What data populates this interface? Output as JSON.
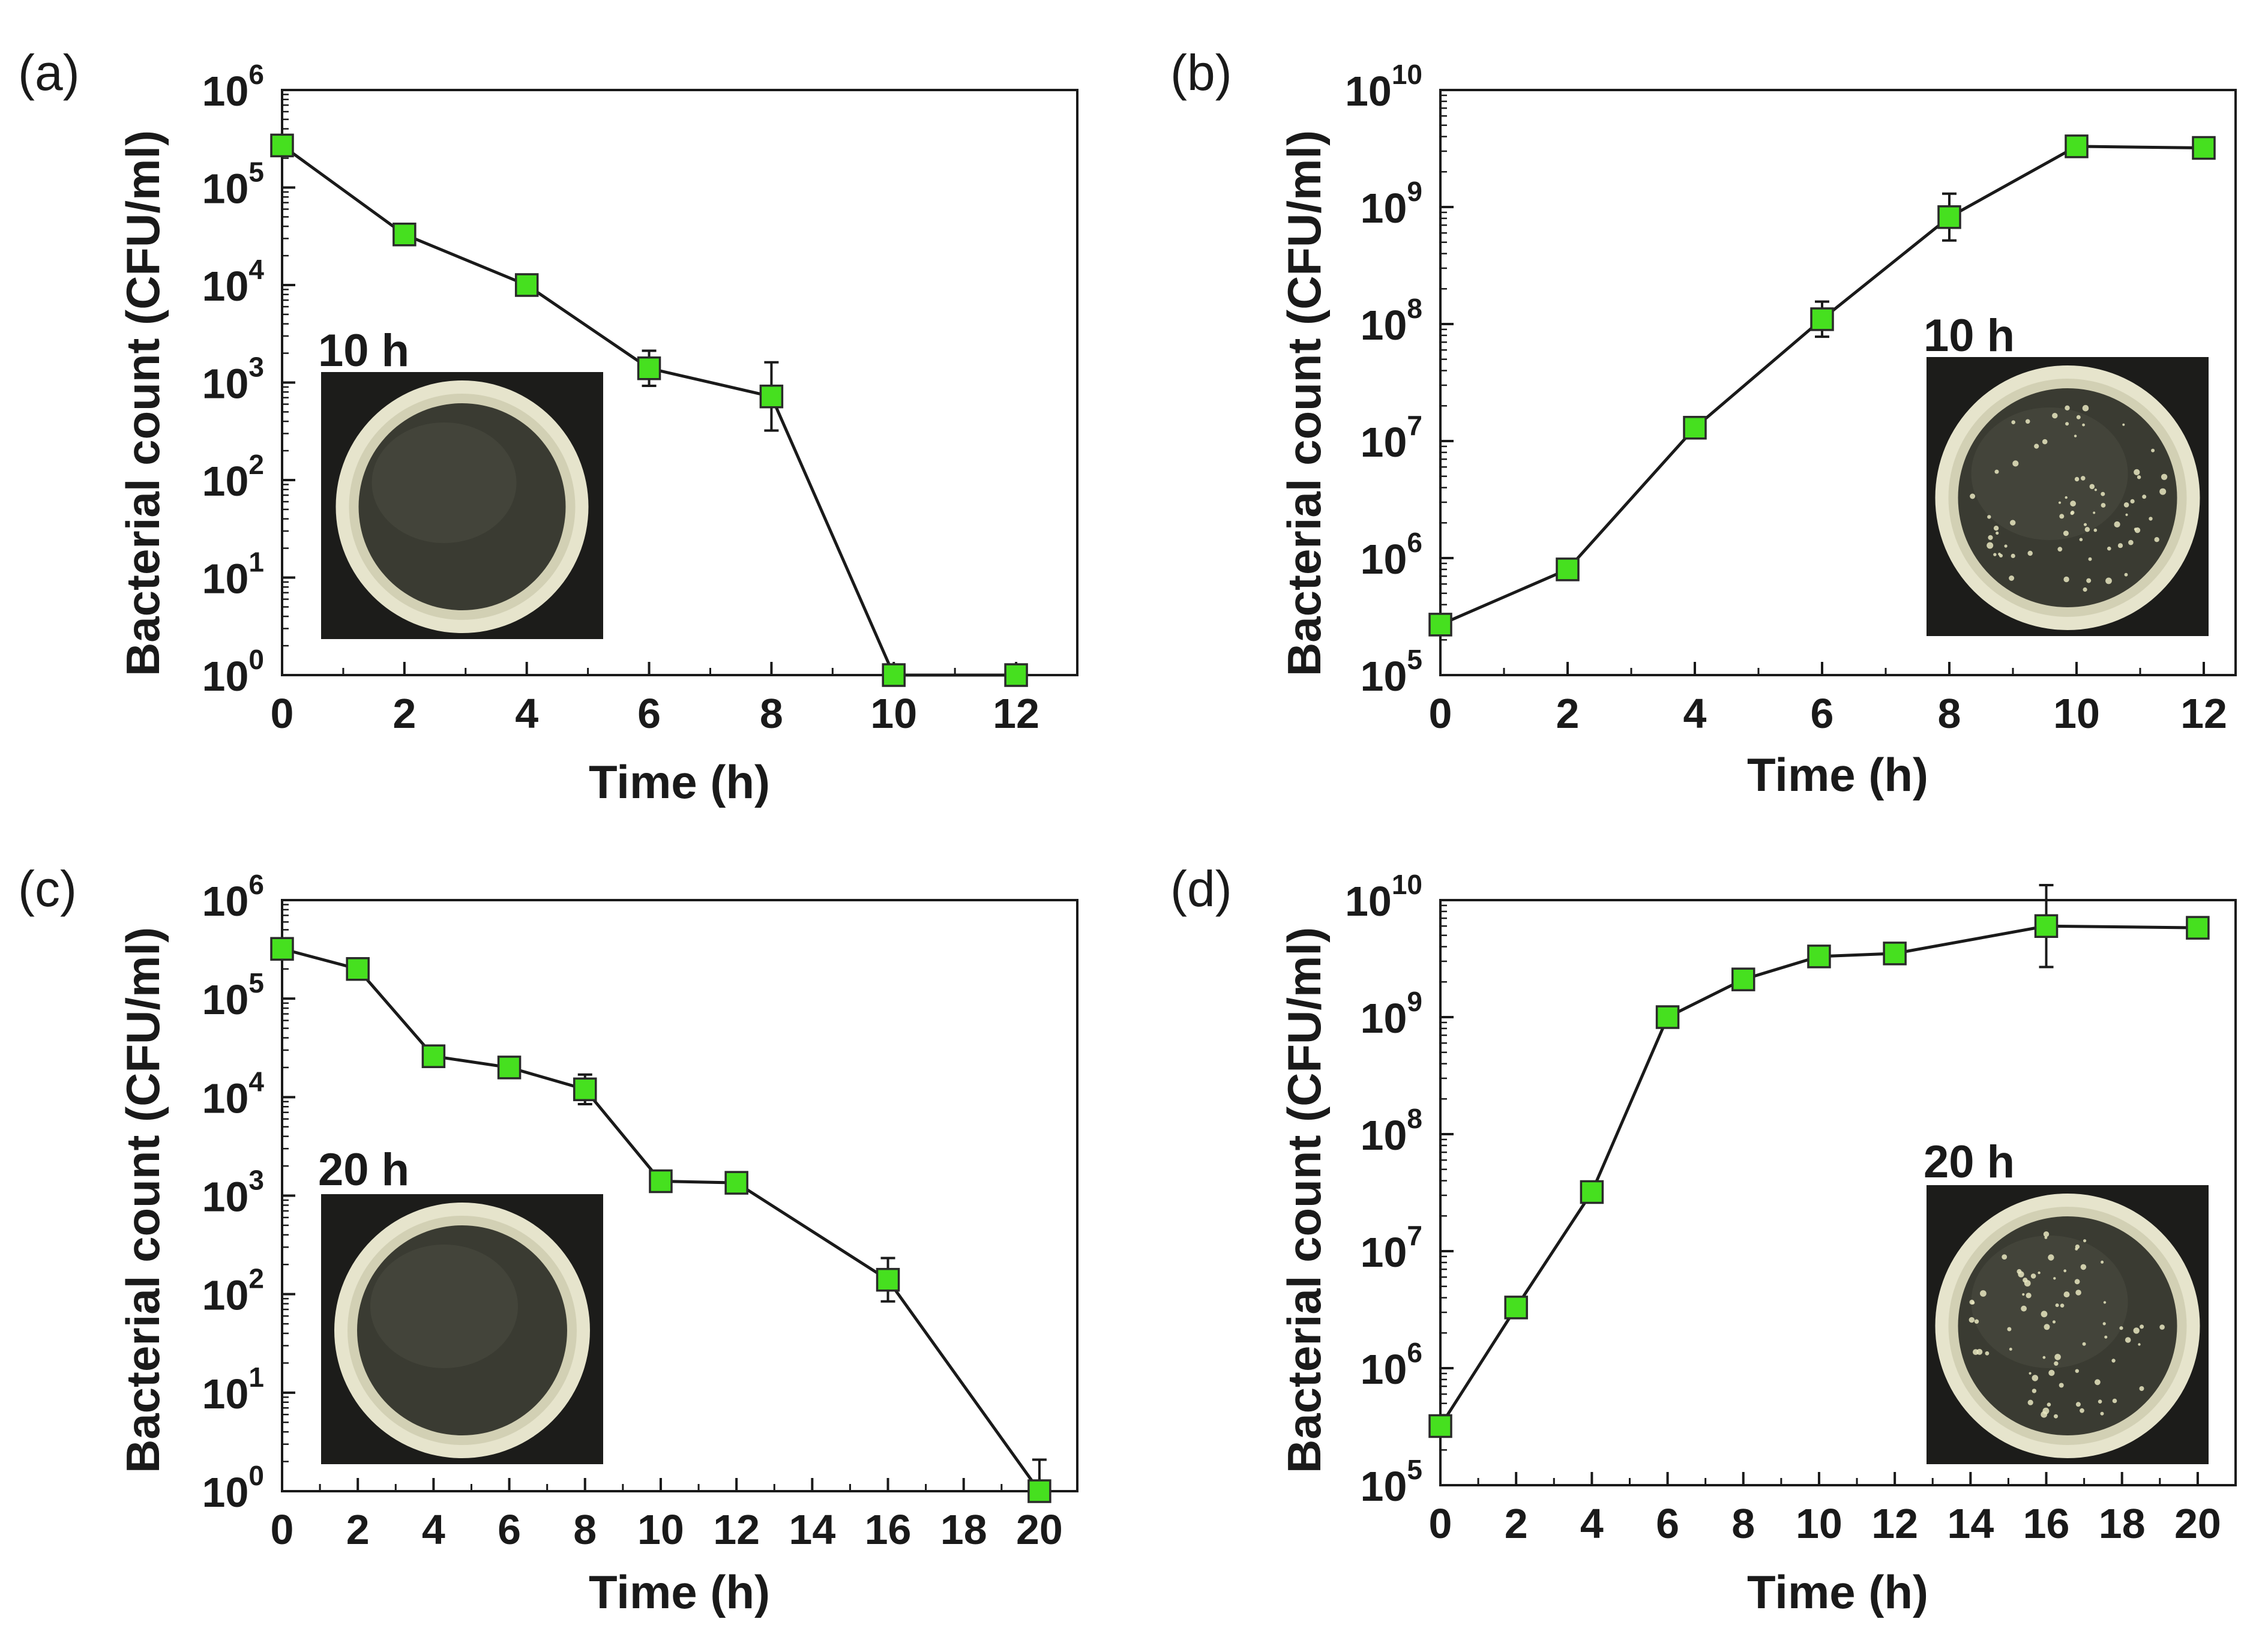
{
  "chart_data": [
    {
      "panel": "(a)",
      "type": "line",
      "y_scale": "log",
      "xlabel": "Time (h)",
      "ylabel": "Bacterial count (CFU/ml)",
      "xlim": [
        0,
        13
      ],
      "xticks": [
        0,
        2,
        4,
        6,
        8,
        10,
        12
      ],
      "ylim_exponent": [
        0,
        6
      ],
      "inset_label": "10 h",
      "inset_image": "petri-dish-clear",
      "series": [
        {
          "name": "bacterial count",
          "x": [
            0,
            2,
            4,
            6,
            8,
            10,
            12
          ],
          "y": [
            270000,
            33000,
            10000,
            1400,
            720,
            1,
            1
          ],
          "err_log": [
            0.06,
            0.06,
            0.06,
            0.18,
            0.35,
            0,
            0
          ]
        }
      ]
    },
    {
      "panel": "(b)",
      "type": "line",
      "y_scale": "log",
      "xlabel": "Time (h)",
      "ylabel": "Bacterial count (CFU/ml)",
      "xlim": [
        0,
        12.5
      ],
      "xticks": [
        0,
        2,
        4,
        6,
        8,
        10,
        12
      ],
      "ylim_exponent": [
        5,
        10
      ],
      "inset_label": "10 h",
      "inset_image": "petri-dish-colonies",
      "series": [
        {
          "name": "bacterial count",
          "x": [
            0,
            2,
            4,
            6,
            8,
            10,
            12
          ],
          "y": [
            270000,
            800000,
            13000000,
            110000000,
            820000000,
            3300000000,
            3200000000
          ],
          "err_log": [
            0.05,
            0.05,
            0.04,
            0.15,
            0.2,
            0.05,
            0.05
          ]
        }
      ]
    },
    {
      "panel": "(c)",
      "type": "line",
      "y_scale": "log",
      "xlabel": "Time (h)",
      "ylabel": "Bacterial count (CFU/ml)",
      "xlim": [
        0,
        21
      ],
      "xticks": [
        0,
        2,
        4,
        6,
        8,
        10,
        12,
        14,
        16,
        18,
        20
      ],
      "ylim_exponent": [
        0,
        6
      ],
      "inset_label": "20 h",
      "inset_image": "petri-dish-clear",
      "series": [
        {
          "name": "bacterial count",
          "x": [
            0,
            2,
            4,
            6,
            8,
            10,
            12,
            16,
            20
          ],
          "y": [
            320000,
            200000,
            26000,
            20000,
            12000,
            1400,
            1350,
            140,
            1
          ],
          "err_log": [
            0.05,
            0.05,
            0.06,
            0.06,
            0.15,
            0.05,
            0.06,
            0.22,
            0.32
          ]
        }
      ]
    },
    {
      "panel": "(d)",
      "type": "line",
      "y_scale": "log",
      "xlabel": "Time (h)",
      "ylabel": "Bacterial count (CFU/ml)",
      "xlim": [
        0,
        21
      ],
      "xticks": [
        0,
        2,
        4,
        6,
        8,
        10,
        12,
        14,
        16,
        18,
        20
      ],
      "ylim_exponent": [
        5,
        10
      ],
      "inset_label": "20 h",
      "inset_image": "petri-dish-colonies",
      "series": [
        {
          "name": "bacterial count",
          "x": [
            0,
            2,
            4,
            6,
            8,
            10,
            12,
            16,
            20
          ],
          "y": [
            320000,
            3300000,
            32000000,
            1000000000,
            2100000000,
            3300000000,
            3500000000,
            6000000000,
            5800000000
          ],
          "err_log": [
            0.04,
            0.05,
            0.06,
            0.05,
            0.05,
            0.05,
            0.05,
            0.35,
            0.05
          ]
        }
      ]
    }
  ],
  "colors": {
    "marker_fill": "#46e01f",
    "marker_edge": "#2a2a2a",
    "line": "#1a1a1a",
    "inset_bg": "#1c1c1a",
    "dish_rim": "#e6e4cc",
    "dish_interior": "#3a3b32",
    "colony": "#e8e6c0"
  }
}
